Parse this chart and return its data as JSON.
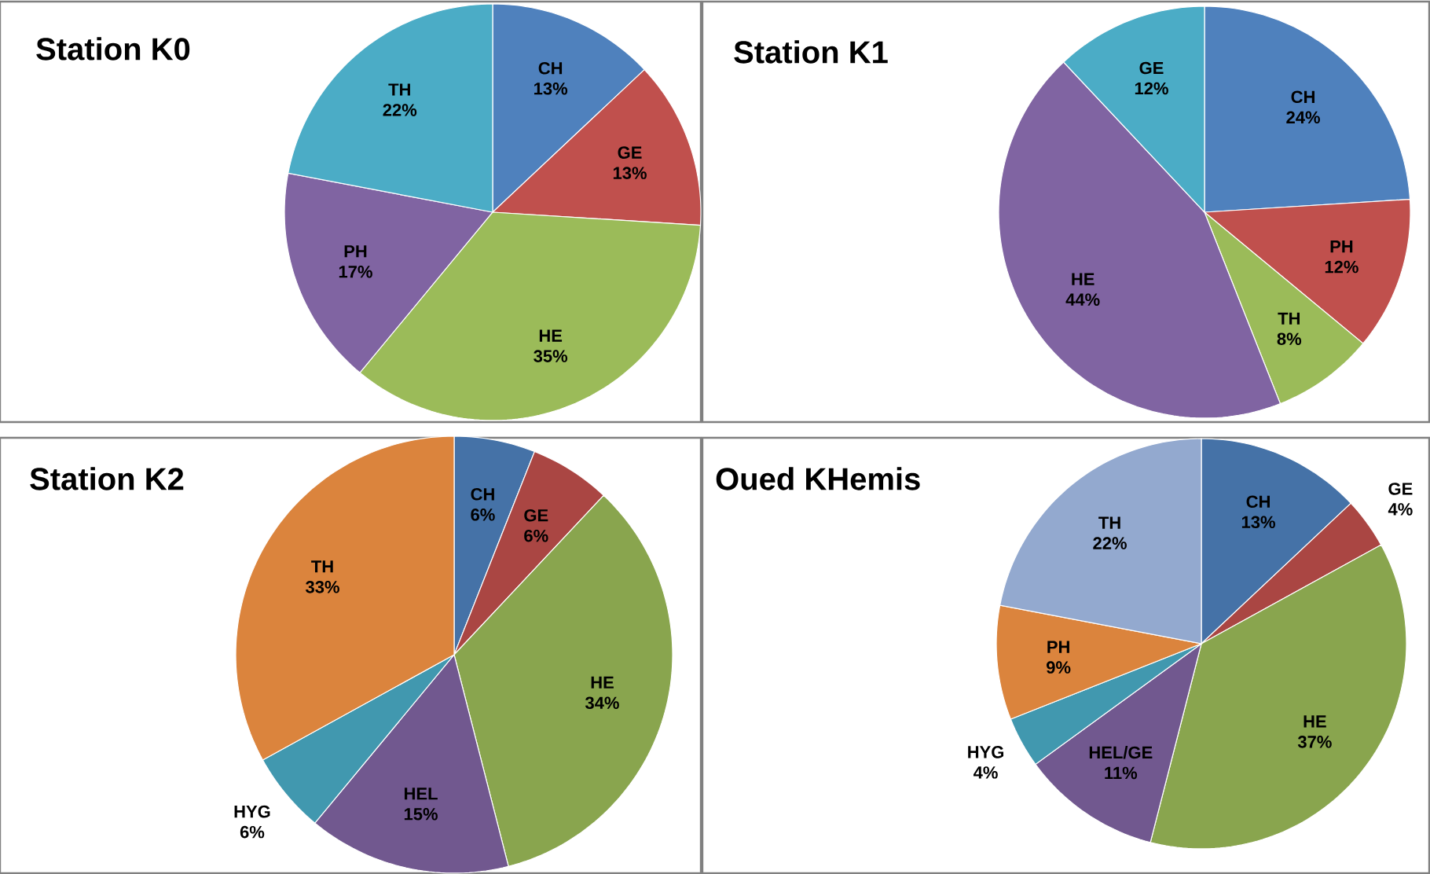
{
  "chart_data": [
    {
      "type": "pie",
      "title": "Station K0",
      "categories": [
        "CH",
        "GE",
        "HE",
        "PH",
        "TH"
      ],
      "values": [
        13,
        13,
        35,
        17,
        22
      ],
      "value_labels": [
        "13%",
        "13%",
        "35%",
        "17%",
        "22%"
      ],
      "colors": [
        "#4f81bd",
        "#c0504d",
        "#9bbb59",
        "#8064a2",
        "#4bacc6"
      ]
    },
    {
      "type": "pie",
      "title": "Station K1",
      "categories": [
        "CH",
        "PH",
        "TH",
        "HE",
        "GE"
      ],
      "values": [
        24,
        12,
        8,
        44,
        12
      ],
      "value_labels": [
        "24%",
        "12%",
        "8%",
        "44%",
        "12%"
      ],
      "colors": [
        "#4f81bd",
        "#c0504d",
        "#9bbb59",
        "#8064a2",
        "#4bacc6"
      ]
    },
    {
      "type": "pie",
      "title": "Station K2",
      "categories": [
        "CH",
        "GE",
        "HE",
        "HEL",
        "HYG",
        "TH"
      ],
      "values": [
        6,
        6,
        34,
        15,
        6,
        33
      ],
      "value_labels": [
        "6%",
        "6%",
        "34%",
        "15%",
        "6%",
        "33%"
      ],
      "colors": [
        "#4572a7",
        "#aa4643",
        "#89a54e",
        "#71588f",
        "#4198af",
        "#db843d"
      ]
    },
    {
      "type": "pie",
      "title": "Oued KHemis",
      "categories": [
        "CH",
        "GE",
        "HE",
        "HEL/GE",
        "HYG",
        "PH",
        "TH"
      ],
      "values": [
        13,
        4,
        37,
        11,
        4,
        9,
        22
      ],
      "value_labels": [
        "13%",
        "4%",
        "37%",
        "11%",
        "4%",
        "9%",
        "22%"
      ],
      "colors": [
        "#4572a7",
        "#aa4643",
        "#89a54e",
        "#71588f",
        "#4198af",
        "#db843d",
        "#93a9cf"
      ]
    }
  ]
}
